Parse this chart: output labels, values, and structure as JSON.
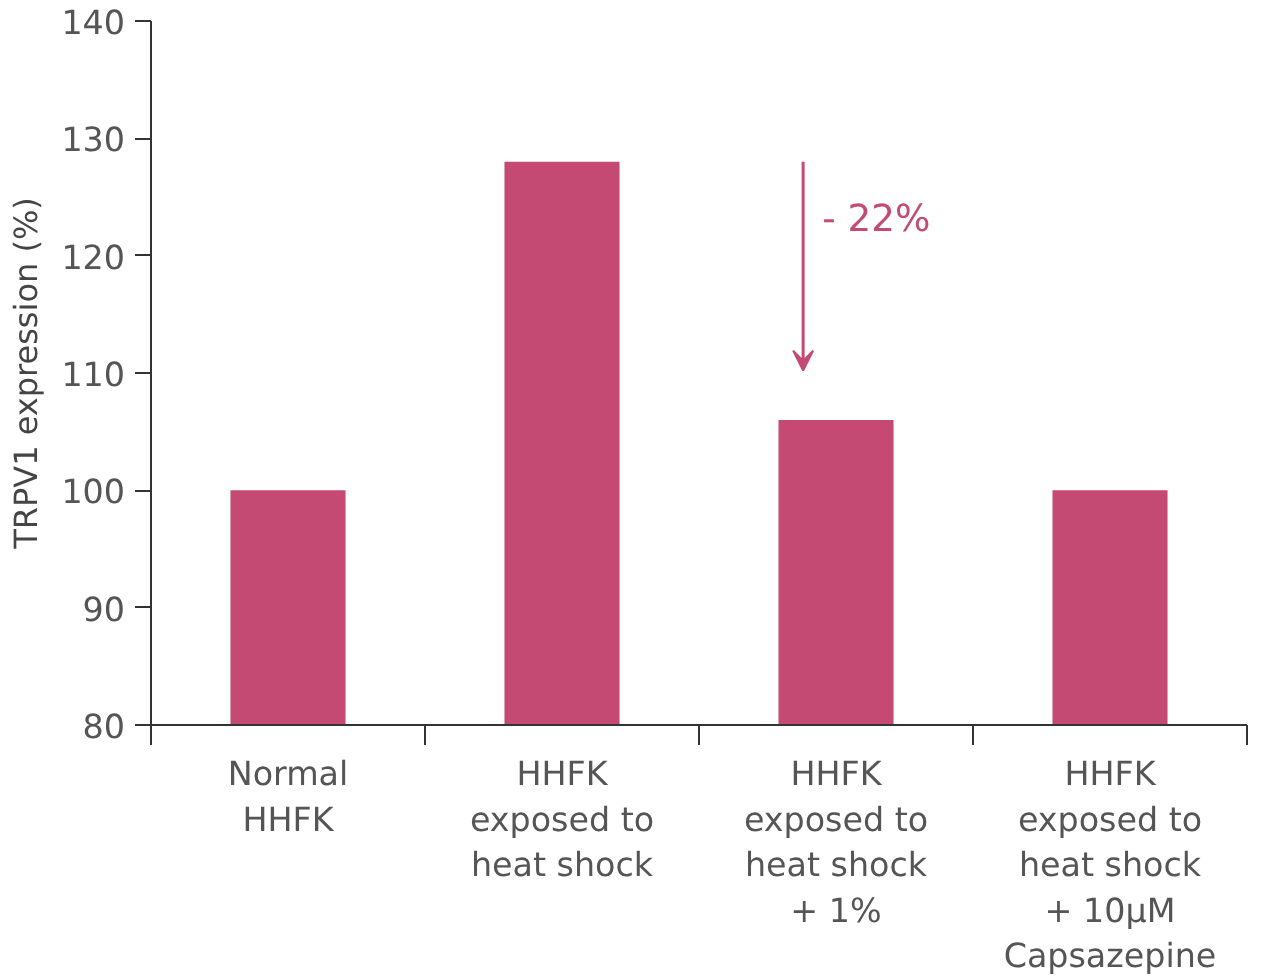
{
  "chart_data": {
    "type": "bar",
    "ylabel": "TRPV1 expression (%)",
    "categories": [
      "Normal\nHHFK",
      "HHFK\nexposed to\nheat shock",
      "HHFK\nexposed to\nheat shock\n+ 1%",
      "HHFK\nexposed to\nheat shock\n+ 10µM\nCapsazepine"
    ],
    "values": [
      100,
      128,
      106,
      100
    ],
    "color": "#c44a73",
    "ylim": [
      80,
      140
    ],
    "yticks": [
      80,
      90,
      100,
      110,
      120,
      130,
      140
    ],
    "grid": false,
    "annotations": [
      "- 22%"
    ]
  }
}
